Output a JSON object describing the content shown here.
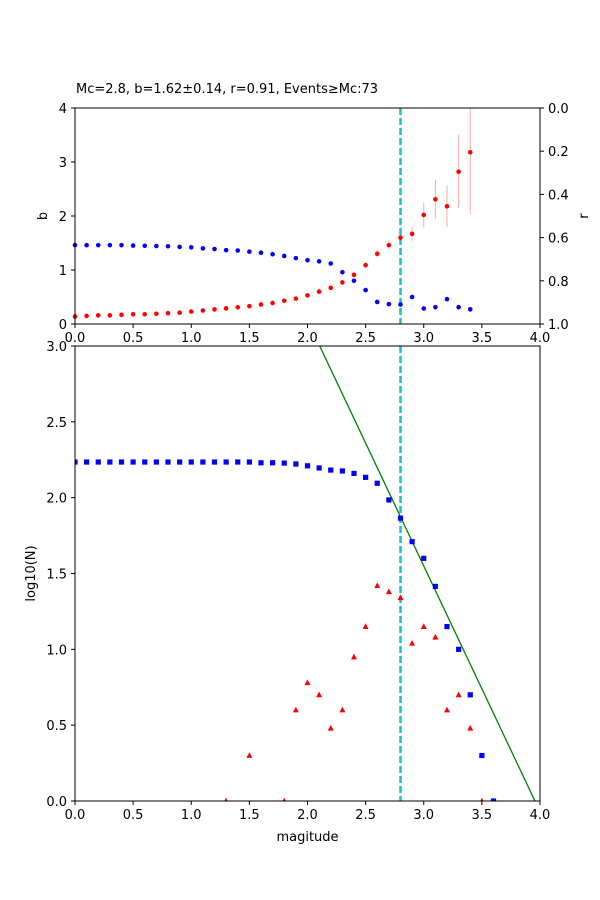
{
  "chart_data": [
    {
      "type": "scatter",
      "title": "Mc=2.8, b=1.62±0.14, r=0.91, Events≥Mc:73",
      "xlabel": "",
      "ylabel": "b",
      "y2label": "r",
      "xlim": [
        0,
        4
      ],
      "ylim": [
        0,
        4
      ],
      "y2lim": [
        1.0,
        0.0
      ],
      "x_ticks": [
        "0.0",
        "0.5",
        "1.0",
        "1.5",
        "2.0",
        "2.5",
        "3.0",
        "3.5",
        "4.0"
      ],
      "y_ticks": [
        "0",
        "1",
        "2",
        "3",
        "4"
      ],
      "y2_ticks": [
        "0.0",
        "0.2",
        "0.4",
        "0.6",
        "0.8",
        "1.0"
      ],
      "mc_line": 2.8,
      "series": [
        {
          "color": "#ff0000",
          "axis": "left",
          "x": [
            0.0,
            0.1,
            0.2,
            0.3,
            0.4,
            0.5,
            0.6,
            0.7,
            0.8,
            0.9,
            1.0,
            1.1,
            1.2,
            1.3,
            1.4,
            1.5,
            1.6,
            1.7,
            1.8,
            1.9,
            2.0,
            2.1,
            2.2,
            2.3,
            2.4,
            2.5,
            2.6,
            2.7,
            2.8,
            2.9,
            3.0,
            3.1,
            3.2,
            3.3,
            3.4
          ],
          "values": [
            0.14,
            0.15,
            0.16,
            0.16,
            0.17,
            0.18,
            0.18,
            0.19,
            0.2,
            0.21,
            0.23,
            0.25,
            0.27,
            0.29,
            0.31,
            0.33,
            0.36,
            0.39,
            0.43,
            0.47,
            0.53,
            0.6,
            0.67,
            0.77,
            0.91,
            1.09,
            1.3,
            1.46,
            1.6,
            1.67,
            2.02,
            2.31,
            2.18,
            2.82,
            3.18
          ],
          "errors": [
            0,
            0,
            0,
            0,
            0,
            0,
            0,
            0,
            0,
            0,
            0,
            0,
            0,
            0,
            0,
            0,
            0,
            0,
            0,
            0,
            0,
            0,
            0,
            0,
            0,
            0.06,
            0.07,
            0.09,
            0.12,
            0.13,
            0.23,
            0.36,
            0.38,
            0.68,
            1.15
          ]
        },
        {
          "color": "#0000ff",
          "axis": "right",
          "x": [
            0.0,
            0.1,
            0.2,
            0.3,
            0.4,
            0.5,
            0.6,
            0.7,
            0.8,
            0.9,
            1.0,
            1.1,
            1.2,
            1.3,
            1.4,
            1.5,
            1.6,
            1.7,
            1.8,
            1.9,
            2.0,
            2.1,
            2.2,
            2.3,
            2.4,
            2.5,
            2.6,
            2.7,
            2.8,
            2.9,
            3.0,
            3.1,
            3.2,
            3.3,
            3.4
          ],
          "values": [
            0.635,
            0.635,
            0.635,
            0.635,
            0.635,
            0.637,
            0.638,
            0.639,
            0.64,
            0.643,
            0.645,
            0.65,
            0.653,
            0.658,
            0.66,
            0.665,
            0.67,
            0.677,
            0.685,
            0.695,
            0.705,
            0.71,
            0.72,
            0.76,
            0.8,
            0.843,
            0.898,
            0.908,
            0.91,
            0.875,
            0.928,
            0.922,
            0.885,
            0.922,
            0.932
          ]
        }
      ]
    },
    {
      "type": "scatter",
      "title": "",
      "xlabel": "magitude",
      "ylabel": "log10(N)",
      "xlim": [
        0,
        4
      ],
      "ylim": [
        0,
        3
      ],
      "x_ticks": [
        "0.0",
        "0.5",
        "1.0",
        "1.5",
        "2.0",
        "2.5",
        "3.0",
        "3.5",
        "4.0"
      ],
      "y_ticks": [
        "0.0",
        "0.5",
        "1.0",
        "1.5",
        "2.0",
        "2.5",
        "3.0"
      ],
      "mc_line": 2.8,
      "fit_line": {
        "a": 6.41,
        "b": 1.62,
        "color": "#008000"
      },
      "series": [
        {
          "marker": "square",
          "color": "#0000ff",
          "x": [
            0.0,
            0.1,
            0.2,
            0.3,
            0.4,
            0.5,
            0.6,
            0.7,
            0.8,
            0.9,
            1.0,
            1.1,
            1.2,
            1.3,
            1.4,
            1.5,
            1.6,
            1.7,
            1.8,
            1.9,
            2.0,
            2.1,
            2.2,
            2.3,
            2.4,
            2.5,
            2.6,
            2.7,
            2.8,
            2.9,
            3.0,
            3.1,
            3.2,
            3.3,
            3.4,
            3.5,
            3.6
          ],
          "values": [
            2.235,
            2.235,
            2.235,
            2.235,
            2.235,
            2.235,
            2.235,
            2.235,
            2.235,
            2.235,
            2.235,
            2.235,
            2.235,
            2.235,
            2.235,
            2.235,
            2.23,
            2.23,
            2.228,
            2.222,
            2.21,
            2.196,
            2.182,
            2.176,
            2.16,
            2.134,
            2.095,
            1.985,
            1.865,
            1.71,
            1.6,
            1.415,
            1.15,
            1.0,
            0.7,
            0.3,
            0.0
          ]
        },
        {
          "marker": "triangle",
          "color": "#ff0000",
          "x": [
            1.3,
            1.5,
            1.8,
            1.9,
            2.0,
            2.1,
            2.2,
            2.3,
            2.4,
            2.5,
            2.6,
            2.7,
            2.8,
            2.9,
            3.0,
            3.1,
            3.2,
            3.3,
            3.4,
            3.5
          ],
          "values": [
            0.0,
            0.3,
            0.0,
            0.6,
            0.78,
            0.7,
            0.48,
            0.6,
            0.95,
            1.15,
            1.42,
            1.38,
            1.34,
            1.04,
            1.15,
            1.08,
            0.6,
            0.7,
            0.48,
            0.0
          ]
        }
      ]
    }
  ]
}
